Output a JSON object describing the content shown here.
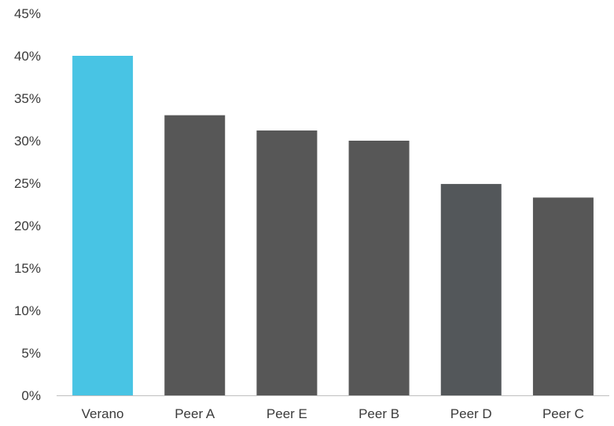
{
  "chart_data": {
    "type": "bar",
    "title": "",
    "xlabel": "",
    "ylabel": "",
    "categories": [
      "Verano",
      "Peer A",
      "Peer E",
      "Peer B",
      "Peer D",
      "Peer C"
    ],
    "values": [
      40,
      33,
      31.2,
      30,
      24.9,
      23.3
    ],
    "ylim": [
      0,
      45
    ],
    "y_ticks": [
      0,
      5,
      10,
      15,
      20,
      25,
      30,
      35,
      40,
      45
    ],
    "y_tick_labels": [
      "0%",
      "5%",
      "10%",
      "15%",
      "20%",
      "25%",
      "30%",
      "35%",
      "40%",
      "45%"
    ],
    "grid": false,
    "legend": "none",
    "colors": {
      "highlight": "#48C4E4",
      "default": "#575757",
      "alt": "#53575A"
    },
    "bar_colors": [
      "#48C4E4",
      "#575757",
      "#575757",
      "#575757",
      "#53575A",
      "#575757"
    ]
  }
}
